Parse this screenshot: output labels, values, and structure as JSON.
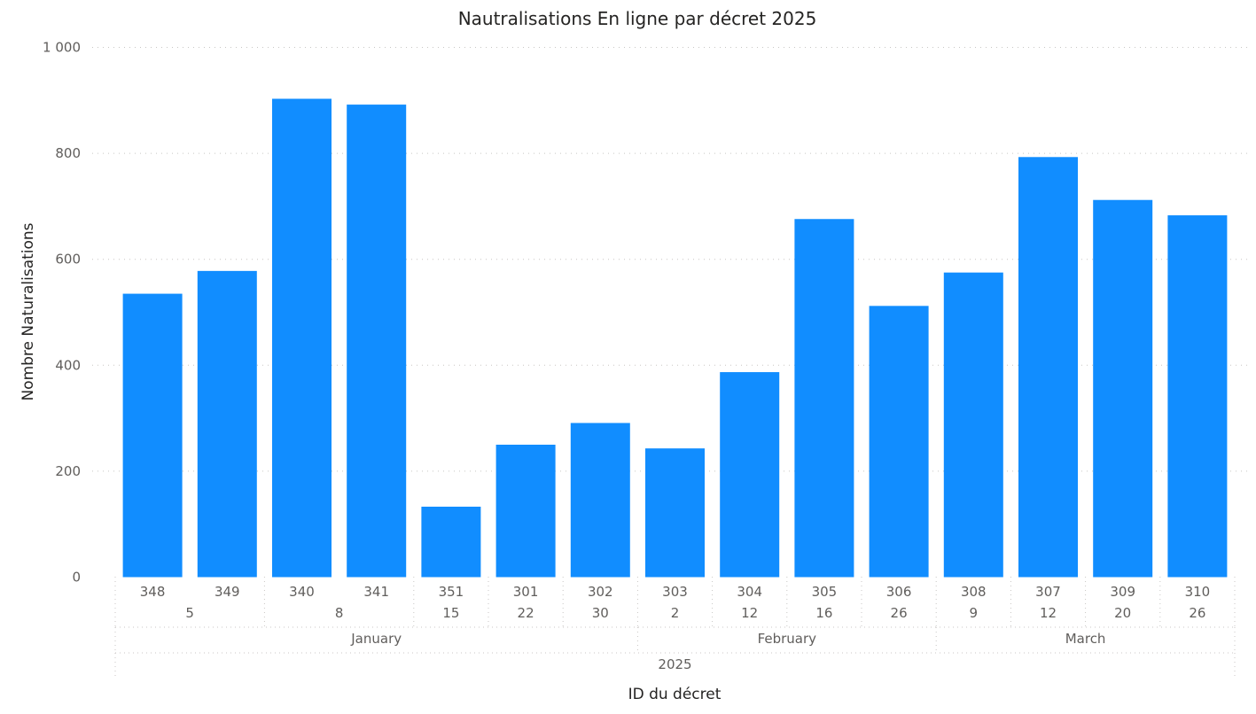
{
  "chart_data": {
    "type": "bar",
    "title": "Nautralisations En ligne par décret 2025",
    "xlabel": "ID du décret",
    "ylabel": "Nombre Naturalisations",
    "ylim": [
      0,
      1000
    ],
    "yticks": [
      0,
      200,
      400,
      600,
      800,
      1000
    ],
    "ytick_labels": [
      "0",
      "200",
      "400",
      "600",
      "800",
      "1 000"
    ],
    "grid": true,
    "bar_color": "#118DFF",
    "categories": [
      "348",
      "349",
      "340",
      "341",
      "351",
      "301",
      "302",
      "303",
      "304",
      "305",
      "306",
      "308",
      "307",
      "309",
      "310"
    ],
    "values": [
      535,
      578,
      903,
      892,
      133,
      250,
      291,
      243,
      387,
      676,
      512,
      575,
      793,
      712,
      683
    ],
    "day_groups": [
      {
        "label": "5",
        "count": 2
      },
      {
        "label": "8",
        "count": 2
      },
      {
        "label": "15",
        "count": 1
      },
      {
        "label": "22",
        "count": 1
      },
      {
        "label": "30",
        "count": 1
      },
      {
        "label": "2",
        "count": 1
      },
      {
        "label": "12",
        "count": 1
      },
      {
        "label": "16",
        "count": 1
      },
      {
        "label": "26",
        "count": 1
      },
      {
        "label": "9",
        "count": 1
      },
      {
        "label": "12",
        "count": 1
      },
      {
        "label": "20",
        "count": 1
      },
      {
        "label": "26",
        "count": 1
      }
    ],
    "month_groups": [
      {
        "label": "January",
        "count": 7
      },
      {
        "label": "February",
        "count": 4
      },
      {
        "label": "March",
        "count": 4
      }
    ],
    "year_groups": [
      {
        "label": "2025",
        "count": 15
      }
    ]
  }
}
